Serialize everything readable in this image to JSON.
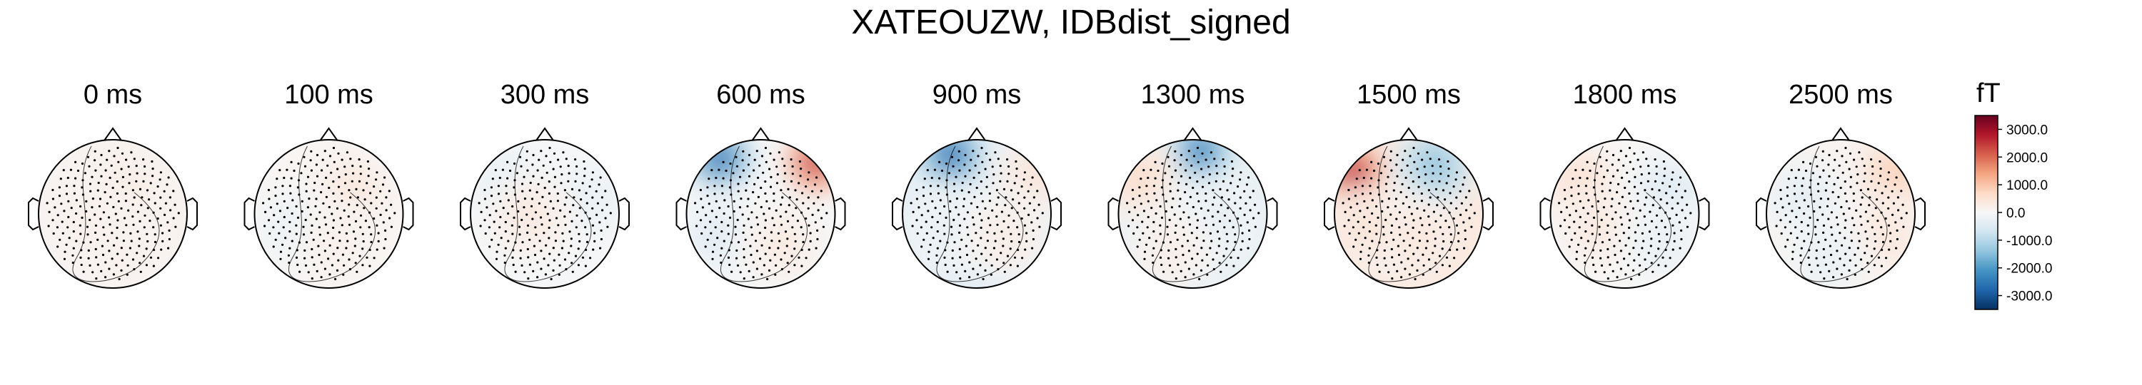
{
  "title": "XATEOUZW, IDBdist_signed",
  "chart_data": {
    "type": "topomap",
    "title": "XATEOUZW, IDBdist_signed",
    "time_unit": "ms",
    "panels": [
      {
        "time": 0,
        "label": "0 ms",
        "blobs": [
          {
            "x": 0.15,
            "y": 0.3,
            "v": 350
          },
          {
            "x": 0.0,
            "y": -0.4,
            "v": 250
          },
          {
            "x": -0.35,
            "y": -0.1,
            "v": 200
          }
        ]
      },
      {
        "time": 100,
        "label": "100 ms",
        "blobs": [
          {
            "x": 0.3,
            "y": 0.3,
            "v": 450
          },
          {
            "x": -0.5,
            "y": -0.2,
            "v": -250
          },
          {
            "x": 0.1,
            "y": -0.4,
            "v": 200
          }
        ]
      },
      {
        "time": 300,
        "label": "300 ms",
        "blobs": [
          {
            "x": -0.5,
            "y": 0.4,
            "v": -350
          },
          {
            "x": 0.6,
            "y": 0.2,
            "v": -300
          },
          {
            "x": -0.2,
            "y": -0.05,
            "v": 400
          }
        ]
      },
      {
        "time": 600,
        "label": "600 ms",
        "blobs": [
          {
            "x": -0.55,
            "y": 0.75,
            "v": -2700
          },
          {
            "x": 0.75,
            "y": 0.7,
            "v": 2500
          },
          {
            "x": -0.6,
            "y": -0.3,
            "v": -450
          },
          {
            "x": 0.3,
            "y": -0.4,
            "v": 350
          }
        ]
      },
      {
        "time": 900,
        "label": "900 ms",
        "blobs": [
          {
            "x": -0.35,
            "y": 0.8,
            "v": -2800
          },
          {
            "x": 0.8,
            "y": 0.55,
            "v": 500
          },
          {
            "x": -0.4,
            "y": -0.2,
            "v": -300
          },
          {
            "x": 0.4,
            "y": -0.3,
            "v": 300
          }
        ]
      },
      {
        "time": 1300,
        "label": "1300 ms",
        "blobs": [
          {
            "x": 0.1,
            "y": 0.85,
            "v": -2500
          },
          {
            "x": -0.75,
            "y": 0.5,
            "v": 700
          },
          {
            "x": 0.3,
            "y": -0.1,
            "v": -350
          },
          {
            "x": -0.3,
            "y": -0.5,
            "v": 250
          }
        ]
      },
      {
        "time": 1500,
        "label": "1500 ms",
        "blobs": [
          {
            "x": -0.75,
            "y": 0.55,
            "v": 2800
          },
          {
            "x": 0.35,
            "y": 0.65,
            "v": -1500
          },
          {
            "x": 0.0,
            "y": -0.3,
            "v": 500
          },
          {
            "x": -0.6,
            "y": -0.2,
            "v": 500
          }
        ]
      },
      {
        "time": 1800,
        "label": "1800 ms",
        "blobs": [
          {
            "x": -0.6,
            "y": 0.4,
            "v": 650
          },
          {
            "x": 0.6,
            "y": 0.3,
            "v": -550
          },
          {
            "x": -0.35,
            "y": -0.2,
            "v": 400
          },
          {
            "x": 0.5,
            "y": -0.4,
            "v": -300
          }
        ]
      },
      {
        "time": 2500,
        "label": "2500 ms",
        "blobs": [
          {
            "x": 0.75,
            "y": 0.55,
            "v": 900
          },
          {
            "x": -0.5,
            "y": 0.2,
            "v": -400
          },
          {
            "x": 0.6,
            "y": -0.3,
            "v": 450
          },
          {
            "x": -0.2,
            "y": -0.6,
            "v": -300
          }
        ]
      }
    ],
    "colorbar": {
      "unit": "fT",
      "vmin": -3500,
      "vmax": 3500,
      "ticks": [
        3000,
        2000,
        1000,
        0,
        -1000,
        -2000,
        -3000
      ],
      "tick_labels": [
        "3000.0",
        "2000.0",
        "1000.0",
        "0.0",
        "-1000.0",
        "-2000.0",
        "-3000.0"
      ],
      "colormap": "RdBu_r",
      "colors": [
        "#053061",
        "#2166ac",
        "#4393c3",
        "#92c5de",
        "#d1e5f0",
        "#f7f7f7",
        "#fddbc7",
        "#f4a582",
        "#d6604d",
        "#b2182b",
        "#67001f"
      ]
    }
  }
}
